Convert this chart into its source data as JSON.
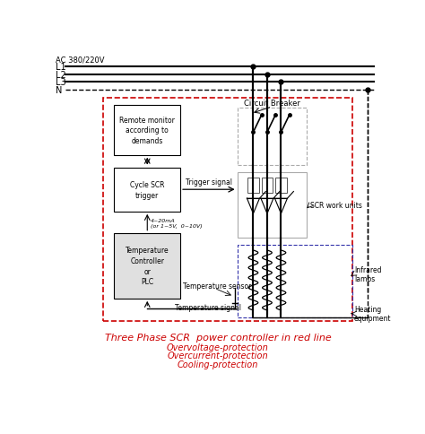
{
  "bg_color": "#ffffff",
  "line_color": "#000000",
  "red_color": "#cc0000",
  "blue_color": "#3333aa",
  "gray_color": "#888888",
  "fig_width": 4.74,
  "fig_height": 4.85,
  "title_main": "Three Phase SCR  power controller in red line",
  "title_sub1": "Overvoltage-protection",
  "title_sub2": "Overcurrent-protection",
  "title_sub3": "Cooling-protection",
  "ac_label": "AC 380/220V",
  "L1": "L1",
  "L2": "L2",
  "L3": "L3",
  "N": "N",
  "label_remote": "Remote monitor\naccording to\ndemands",
  "label_cycle": "Cycle SCR\ntrigger",
  "label_temp_ctrl": "Temperature\nController\nor\nPLC",
  "label_trigger": "Trigger signal",
  "label_4_20ma": "4~20mA\n(or 1~5V,  0~10V)",
  "label_temp_sensor": "Temperature sensor",
  "label_temp_signal": "Temperature signal",
  "label_circuit_breaker": "Circuit Breaker",
  "label_scr_work": "SCR work units",
  "label_infrared": "Infrared\nlamps",
  "label_heating": "Heating\nequipment"
}
